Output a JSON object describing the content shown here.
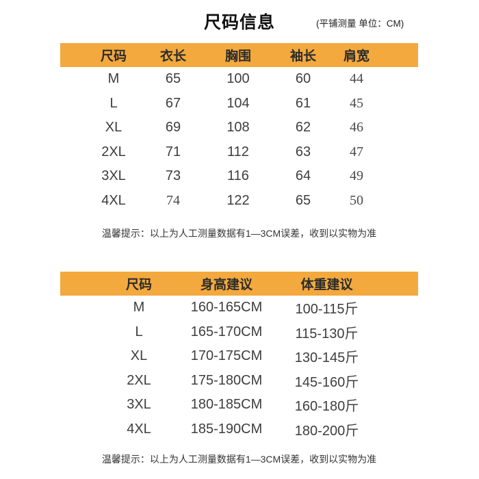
{
  "page": {
    "title": "尺码信息",
    "subtitle": "(平铺测量 单位：CM)"
  },
  "chart_data": [
    {
      "type": "table",
      "name": "garment_measurements",
      "columns": [
        "尺码",
        "衣长",
        "胸围",
        "袖长",
        "肩宽"
      ],
      "rows": [
        [
          "M",
          "65",
          "100",
          "60",
          "44"
        ],
        [
          "L",
          "67",
          "104",
          "61",
          "45"
        ],
        [
          "XL",
          "69",
          "108",
          "62",
          "46"
        ],
        [
          "2XL",
          "71",
          "112",
          "63",
          "47"
        ],
        [
          "3XL",
          "73",
          "116",
          "64",
          "49"
        ],
        [
          "4XL",
          "74",
          "122",
          "65",
          "50"
        ]
      ],
      "note": "温馨提示：以上为人工测量数据有1—3CM误差，收到以实物为准"
    },
    {
      "type": "table",
      "name": "size_recommendation",
      "columns": [
        "尺码",
        "身高建议",
        "体重建议"
      ],
      "rows": [
        [
          "M",
          "160-165CM",
          "100-115斤"
        ],
        [
          "L",
          "165-170CM",
          "115-130斤"
        ],
        [
          "XL",
          "170-175CM",
          "130-145斤"
        ],
        [
          "2XL",
          "175-180CM",
          "145-160斤"
        ],
        [
          "3XL",
          "180-185CM",
          "160-180斤"
        ],
        [
          "4XL",
          "185-190CM",
          "180-200斤"
        ]
      ],
      "note": "温馨提示：以上为人工测量数据有1—3CM误差，收到以实物为准"
    }
  ],
  "colors": {
    "header_bg": "#F3A93D",
    "header_text": "#2B2B2B",
    "body_text": "#3D3D3D",
    "title_text": "#111111"
  }
}
